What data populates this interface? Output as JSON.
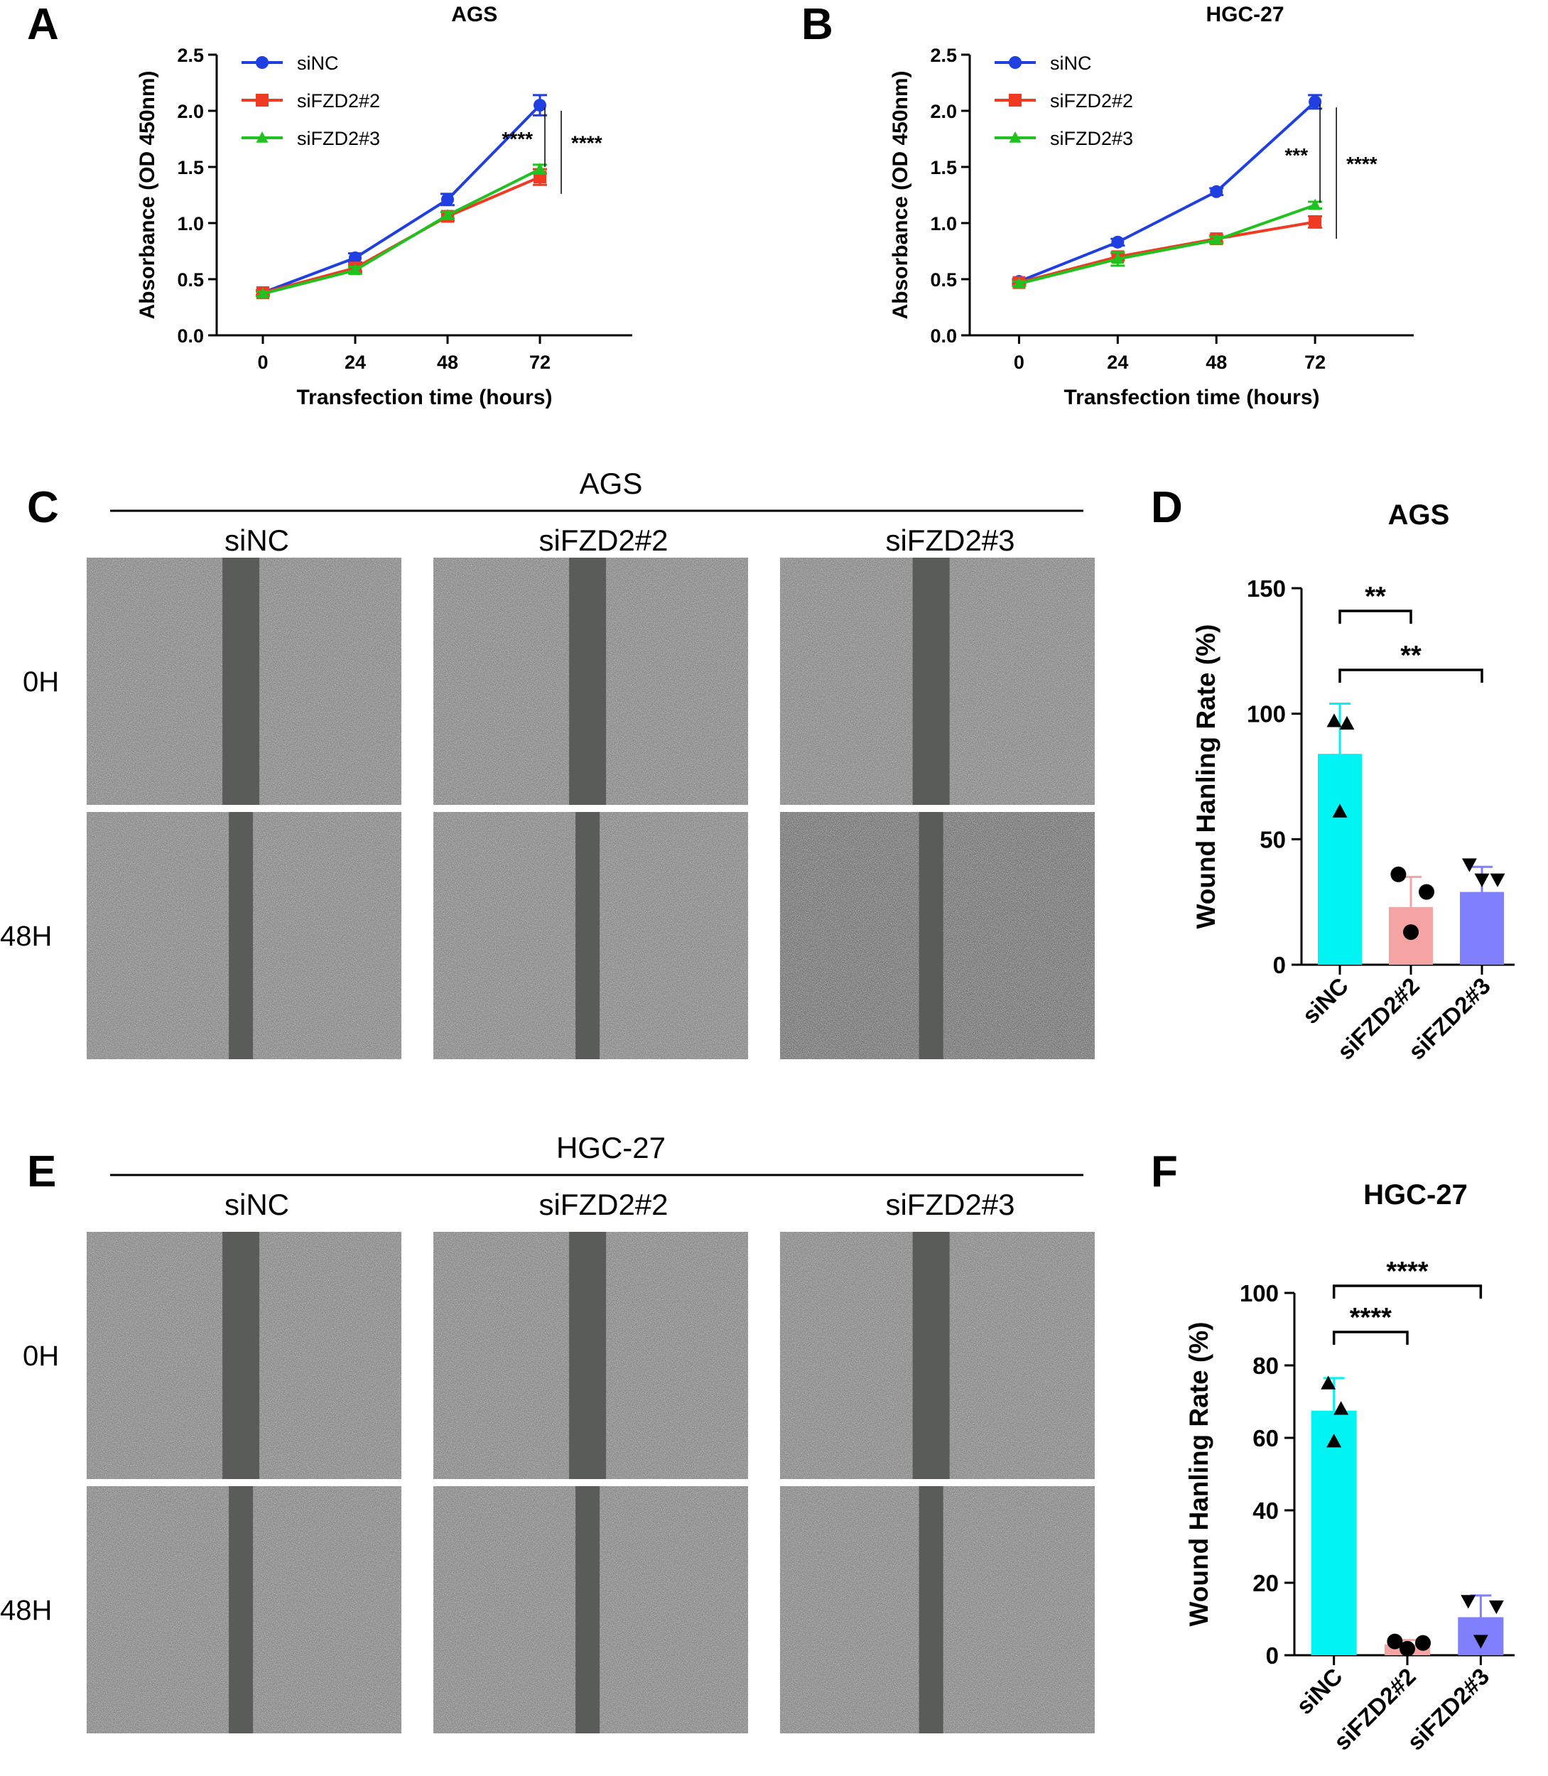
{
  "figure": {
    "panel_labels": {
      "A": "A",
      "B": "B",
      "C": "C",
      "D": "D",
      "E": "E",
      "F": "F"
    },
    "scratch_panels": [
      {
        "title": "AGS",
        "columns": [
          "siNC",
          "siFZD2#2",
          "siFZD2#3"
        ],
        "rows": [
          "0H",
          "48H"
        ]
      },
      {
        "title": "HGC-27",
        "columns": [
          "siNC",
          "siFZD2#2",
          "siFZD2#3"
        ],
        "rows": [
          "0H",
          "48H"
        ]
      }
    ]
  },
  "chart_data": [
    {
      "id": "A",
      "type": "line",
      "title": "AGS",
      "xlabel": "Transfection time (hours)",
      "ylabel": "Absorbance (OD 450nm)",
      "x": [
        0,
        24,
        48,
        72
      ],
      "xticks": [
        "0",
        "24",
        "48",
        "72"
      ],
      "yticks": [
        "0.0",
        "0.5",
        "1.0",
        "1.5",
        "2.0",
        "2.5"
      ],
      "ylim": [
        0,
        2.5
      ],
      "series": [
        {
          "name": "siNC",
          "color": "#1f3fe0",
          "marker": "circle",
          "values": [
            0.38,
            0.69,
            1.21,
            2.05
          ],
          "errors": [
            0.02,
            0.04,
            0.05,
            0.09
          ]
        },
        {
          "name": "siFZD2#2",
          "color": "#f03a22",
          "marker": "square",
          "values": [
            0.38,
            0.6,
            1.06,
            1.41
          ],
          "errors": [
            0.02,
            0.03,
            0.04,
            0.07
          ]
        },
        {
          "name": "siFZD2#3",
          "color": "#1fc21f",
          "marker": "triangle",
          "values": [
            0.37,
            0.58,
            1.07,
            1.48
          ],
          "errors": [
            0.02,
            0.03,
            0.03,
            0.04
          ]
        }
      ],
      "annotations": [
        "****",
        "****"
      ]
    },
    {
      "id": "B",
      "type": "line",
      "title": "HGC-27",
      "xlabel": "Transfection time (hours)",
      "ylabel": "Absorbance (OD 450nm)",
      "x": [
        0,
        24,
        48,
        72
      ],
      "xticks": [
        "0",
        "24",
        "48",
        "72"
      ],
      "yticks": [
        "0.0",
        "0.5",
        "1.0",
        "1.5",
        "2.0",
        "2.5"
      ],
      "ylim": [
        0,
        2.5
      ],
      "series": [
        {
          "name": "siNC",
          "color": "#1f3fe0",
          "marker": "circle",
          "values": [
            0.48,
            0.83,
            1.28,
            2.08
          ],
          "errors": [
            0.02,
            0.03,
            0.03,
            0.06
          ]
        },
        {
          "name": "siFZD2#2",
          "color": "#f03a22",
          "marker": "square",
          "values": [
            0.47,
            0.7,
            0.86,
            1.01
          ],
          "errors": [
            0.02,
            0.03,
            0.03,
            0.05
          ]
        },
        {
          "name": "siFZD2#3",
          "color": "#1fc21f",
          "marker": "triangle",
          "values": [
            0.46,
            0.68,
            0.85,
            1.16
          ],
          "errors": [
            0.02,
            0.06,
            0.03,
            0.03
          ]
        }
      ],
      "annotations": [
        "***",
        "****"
      ]
    },
    {
      "id": "D",
      "type": "bar",
      "title": "AGS",
      "ylabel": "Wound Hanling Rate (%)",
      "categories": [
        "siNC",
        "siFZD2#2",
        "siFZD2#3"
      ],
      "values": [
        84,
        23,
        29
      ],
      "errors": [
        20,
        12,
        10
      ],
      "colors": [
        "#00f4f4",
        "#f5a3a3",
        "#8080ff"
      ],
      "points": [
        [
          97,
          96,
          61
        ],
        [
          36,
          29,
          13
        ],
        [
          40,
          34,
          34
        ]
      ],
      "point_markers": [
        "triangle",
        "circle",
        "triangle-down"
      ],
      "ylim": [
        0,
        150
      ],
      "yticks": [
        "0",
        "50",
        "100",
        "150"
      ],
      "significance": [
        {
          "from": 0,
          "to": 1,
          "label": "**"
        },
        {
          "from": 0,
          "to": 2,
          "label": "**"
        }
      ]
    },
    {
      "id": "F",
      "type": "bar",
      "title": "HGC-27",
      "ylabel": "Wound Hanling Rate (%)",
      "categories": [
        "siNC",
        "siFZD2#2",
        "siFZD2#3"
      ],
      "values": [
        67.5,
        3.0,
        10.5
      ],
      "errors": [
        9,
        1.2,
        6
      ],
      "colors": [
        "#00f4f4",
        "#f5a3a3",
        "#8080ff"
      ],
      "points": [
        [
          75,
          68,
          59
        ],
        [
          3.8,
          3.4,
          1.8
        ],
        [
          15,
          13.5,
          4
        ]
      ],
      "point_markers": [
        "triangle",
        "circle",
        "triangle-down"
      ],
      "ylim": [
        0,
        100
      ],
      "yticks": [
        "0",
        "20",
        "40",
        "60",
        "80",
        "100"
      ],
      "significance": [
        {
          "from": 0,
          "to": 1,
          "label": "****"
        },
        {
          "from": 0,
          "to": 2,
          "label": "****"
        }
      ]
    }
  ]
}
